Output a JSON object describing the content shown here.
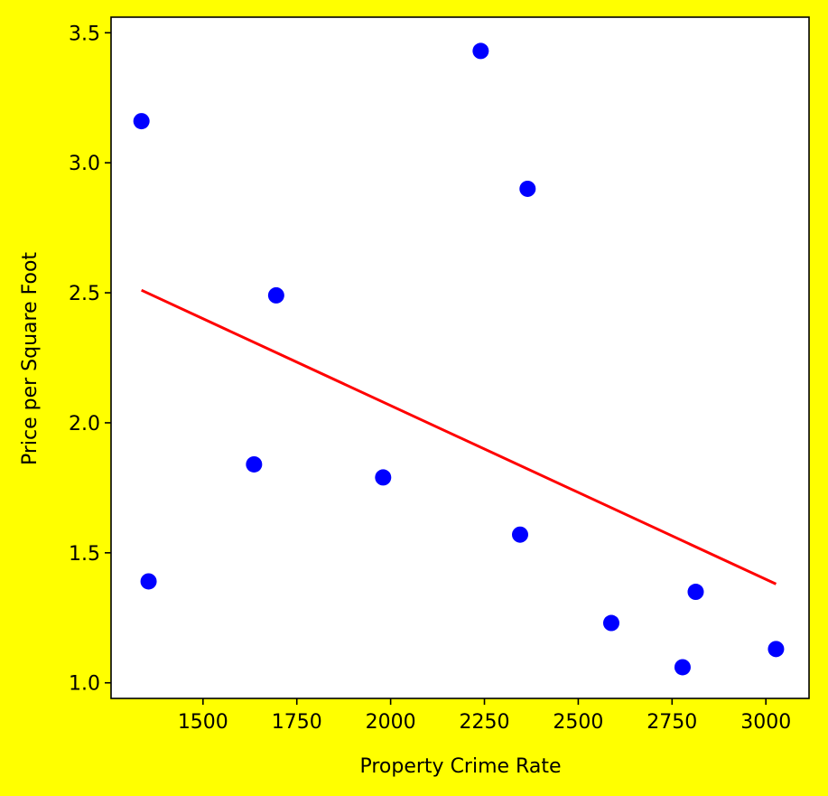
{
  "colors": {
    "figure_background": "#ffff00",
    "plot_background": "#ffffff",
    "points": "#0000ff",
    "trend_line": "#ff0000",
    "axes": "#000000"
  },
  "chart_data": {
    "type": "scatter",
    "title": "",
    "xlabel": "Property Crime Rate",
    "ylabel": "Price per Square Foot",
    "xlim": [
      1255,
      3115
    ],
    "ylim": [
      0.94,
      3.56
    ],
    "xticks": [
      1500,
      1750,
      2000,
      2250,
      2500,
      2750,
      3000
    ],
    "yticks": [
      1.0,
      1.5,
      2.0,
      2.5,
      3.0,
      3.5
    ],
    "xtick_labels": [
      "1500",
      "1750",
      "2000",
      "2250",
      "2500",
      "2750",
      "3000"
    ],
    "ytick_labels": [
      "1.0",
      "1.5",
      "2.0",
      "2.5",
      "3.0",
      "3.5"
    ],
    "grid": false,
    "legend": false,
    "points": [
      {
        "x": 1336,
        "y": 3.16
      },
      {
        "x": 1355,
        "y": 1.39
      },
      {
        "x": 1636,
        "y": 1.84
      },
      {
        "x": 1695,
        "y": 2.49
      },
      {
        "x": 1980,
        "y": 1.79
      },
      {
        "x": 2240,
        "y": 3.43
      },
      {
        "x": 2345,
        "y": 1.57
      },
      {
        "x": 2365,
        "y": 2.9
      },
      {
        "x": 2588,
        "y": 1.23
      },
      {
        "x": 2778,
        "y": 1.06
      },
      {
        "x": 2813,
        "y": 1.35
      },
      {
        "x": 3027,
        "y": 1.13
      }
    ],
    "trend_line": {
      "x": [
        1336,
        3027
      ],
      "y": [
        2.51,
        1.38
      ]
    }
  }
}
